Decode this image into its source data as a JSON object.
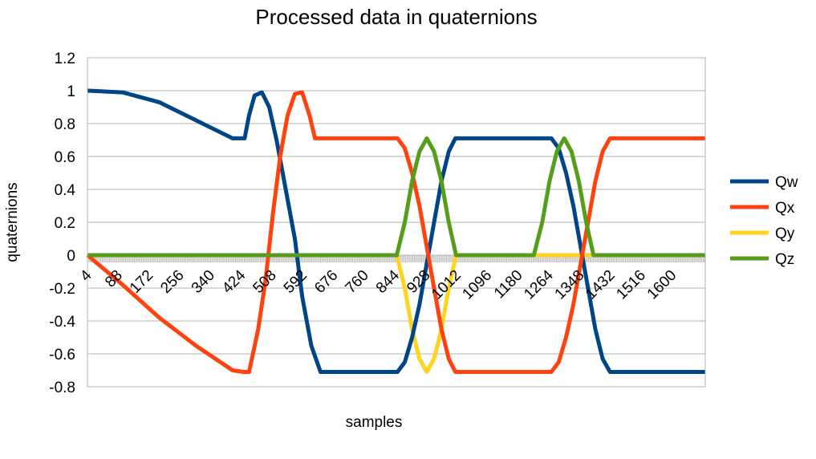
{
  "chart_data": {
    "type": "line",
    "title": "Processed data in quaternions",
    "xlabel": "samples",
    "ylabel": "quaternions",
    "x_tick_labels": [
      "4",
      "88",
      "172",
      "256",
      "340",
      "424",
      "508",
      "592",
      "676",
      "760",
      "844",
      "928",
      "1012",
      "1096",
      "1180",
      "1264",
      "1348",
      "1432",
      "1516",
      "1600"
    ],
    "x_range": [
      4,
      1690
    ],
    "ylim": [
      -0.8,
      1.2
    ],
    "y_ticks": [
      -0.8,
      -0.6,
      -0.4,
      -0.2,
      0,
      0.2,
      0.4,
      0.6,
      0.8,
      1,
      1.2
    ],
    "y_tick_labels": [
      "-0.8",
      "-0.6",
      "-0.4",
      "-0.2",
      "0",
      "0.2",
      "0.4",
      "0.6",
      "0.8",
      "1",
      "1.2"
    ],
    "grid": "horizontal",
    "legend": "right",
    "series": [
      {
        "name": "Qw",
        "color": "#004586",
        "points": [
          [
            4,
            1
          ],
          [
            100,
            0.99
          ],
          [
            200,
            0.93
          ],
          [
            300,
            0.82
          ],
          [
            400,
            0.71
          ],
          [
            433,
            0.71
          ],
          [
            445,
            0.85
          ],
          [
            460,
            0.97
          ],
          [
            480,
            0.99
          ],
          [
            500,
            0.9
          ],
          [
            520,
            0.7
          ],
          [
            545,
            0.4
          ],
          [
            570,
            0.1
          ],
          [
            590,
            -0.25
          ],
          [
            615,
            -0.55
          ],
          [
            640,
            -0.71
          ],
          [
            850,
            -0.71
          ],
          [
            870,
            -0.65
          ],
          [
            890,
            -0.5
          ],
          [
            910,
            -0.3
          ],
          [
            930,
            -0.05
          ],
          [
            950,
            0.2
          ],
          [
            970,
            0.45
          ],
          [
            990,
            0.63
          ],
          [
            1008,
            0.71
          ],
          [
            1270,
            0.71
          ],
          [
            1290,
            0.65
          ],
          [
            1310,
            0.5
          ],
          [
            1330,
            0.3
          ],
          [
            1350,
            0.05
          ],
          [
            1370,
            -0.2
          ],
          [
            1390,
            -0.45
          ],
          [
            1410,
            -0.63
          ],
          [
            1430,
            -0.71
          ],
          [
            1690,
            -0.71
          ]
        ]
      },
      {
        "name": "Qx",
        "color": "#ff420e",
        "points": [
          [
            4,
            0
          ],
          [
            100,
            -0.18
          ],
          [
            200,
            -0.38
          ],
          [
            300,
            -0.55
          ],
          [
            400,
            -0.7
          ],
          [
            430,
            -0.71
          ],
          [
            445,
            -0.71
          ],
          [
            470,
            -0.45
          ],
          [
            490,
            -0.15
          ],
          [
            510,
            0.25
          ],
          [
            530,
            0.6
          ],
          [
            550,
            0.85
          ],
          [
            570,
            0.98
          ],
          [
            590,
            0.99
          ],
          [
            610,
            0.85
          ],
          [
            625,
            0.71
          ],
          [
            850,
            0.71
          ],
          [
            870,
            0.65
          ],
          [
            890,
            0.5
          ],
          [
            910,
            0.3
          ],
          [
            930,
            0.05
          ],
          [
            950,
            -0.2
          ],
          [
            970,
            -0.45
          ],
          [
            990,
            -0.63
          ],
          [
            1008,
            -0.71
          ],
          [
            1270,
            -0.71
          ],
          [
            1290,
            -0.65
          ],
          [
            1310,
            -0.5
          ],
          [
            1330,
            -0.3
          ],
          [
            1350,
            -0.05
          ],
          [
            1370,
            0.2
          ],
          [
            1390,
            0.45
          ],
          [
            1410,
            0.63
          ],
          [
            1430,
            0.71
          ],
          [
            1690,
            0.71
          ]
        ]
      },
      {
        "name": "Qy",
        "color": "#ffd320",
        "points": [
          [
            4,
            0
          ],
          [
            848,
            0
          ],
          [
            870,
            -0.2
          ],
          [
            890,
            -0.45
          ],
          [
            910,
            -0.63
          ],
          [
            930,
            -0.71
          ],
          [
            950,
            -0.63
          ],
          [
            970,
            -0.45
          ],
          [
            990,
            -0.2
          ],
          [
            1010,
            0
          ],
          [
            1690,
            0
          ]
        ]
      },
      {
        "name": "Qz",
        "color": "#579d1c",
        "points": [
          [
            4,
            0
          ],
          [
            848,
            0
          ],
          [
            870,
            0.2
          ],
          [
            890,
            0.45
          ],
          [
            910,
            0.63
          ],
          [
            930,
            0.71
          ],
          [
            950,
            0.63
          ],
          [
            970,
            0.45
          ],
          [
            990,
            0.2
          ],
          [
            1010,
            0
          ],
          [
            1222,
            0
          ],
          [
            1245,
            0.2
          ],
          [
            1265,
            0.45
          ],
          [
            1285,
            0.63
          ],
          [
            1305,
            0.71
          ],
          [
            1325,
            0.63
          ],
          [
            1345,
            0.45
          ],
          [
            1365,
            0.2
          ],
          [
            1385,
            0
          ],
          [
            1690,
            0
          ]
        ]
      }
    ]
  }
}
